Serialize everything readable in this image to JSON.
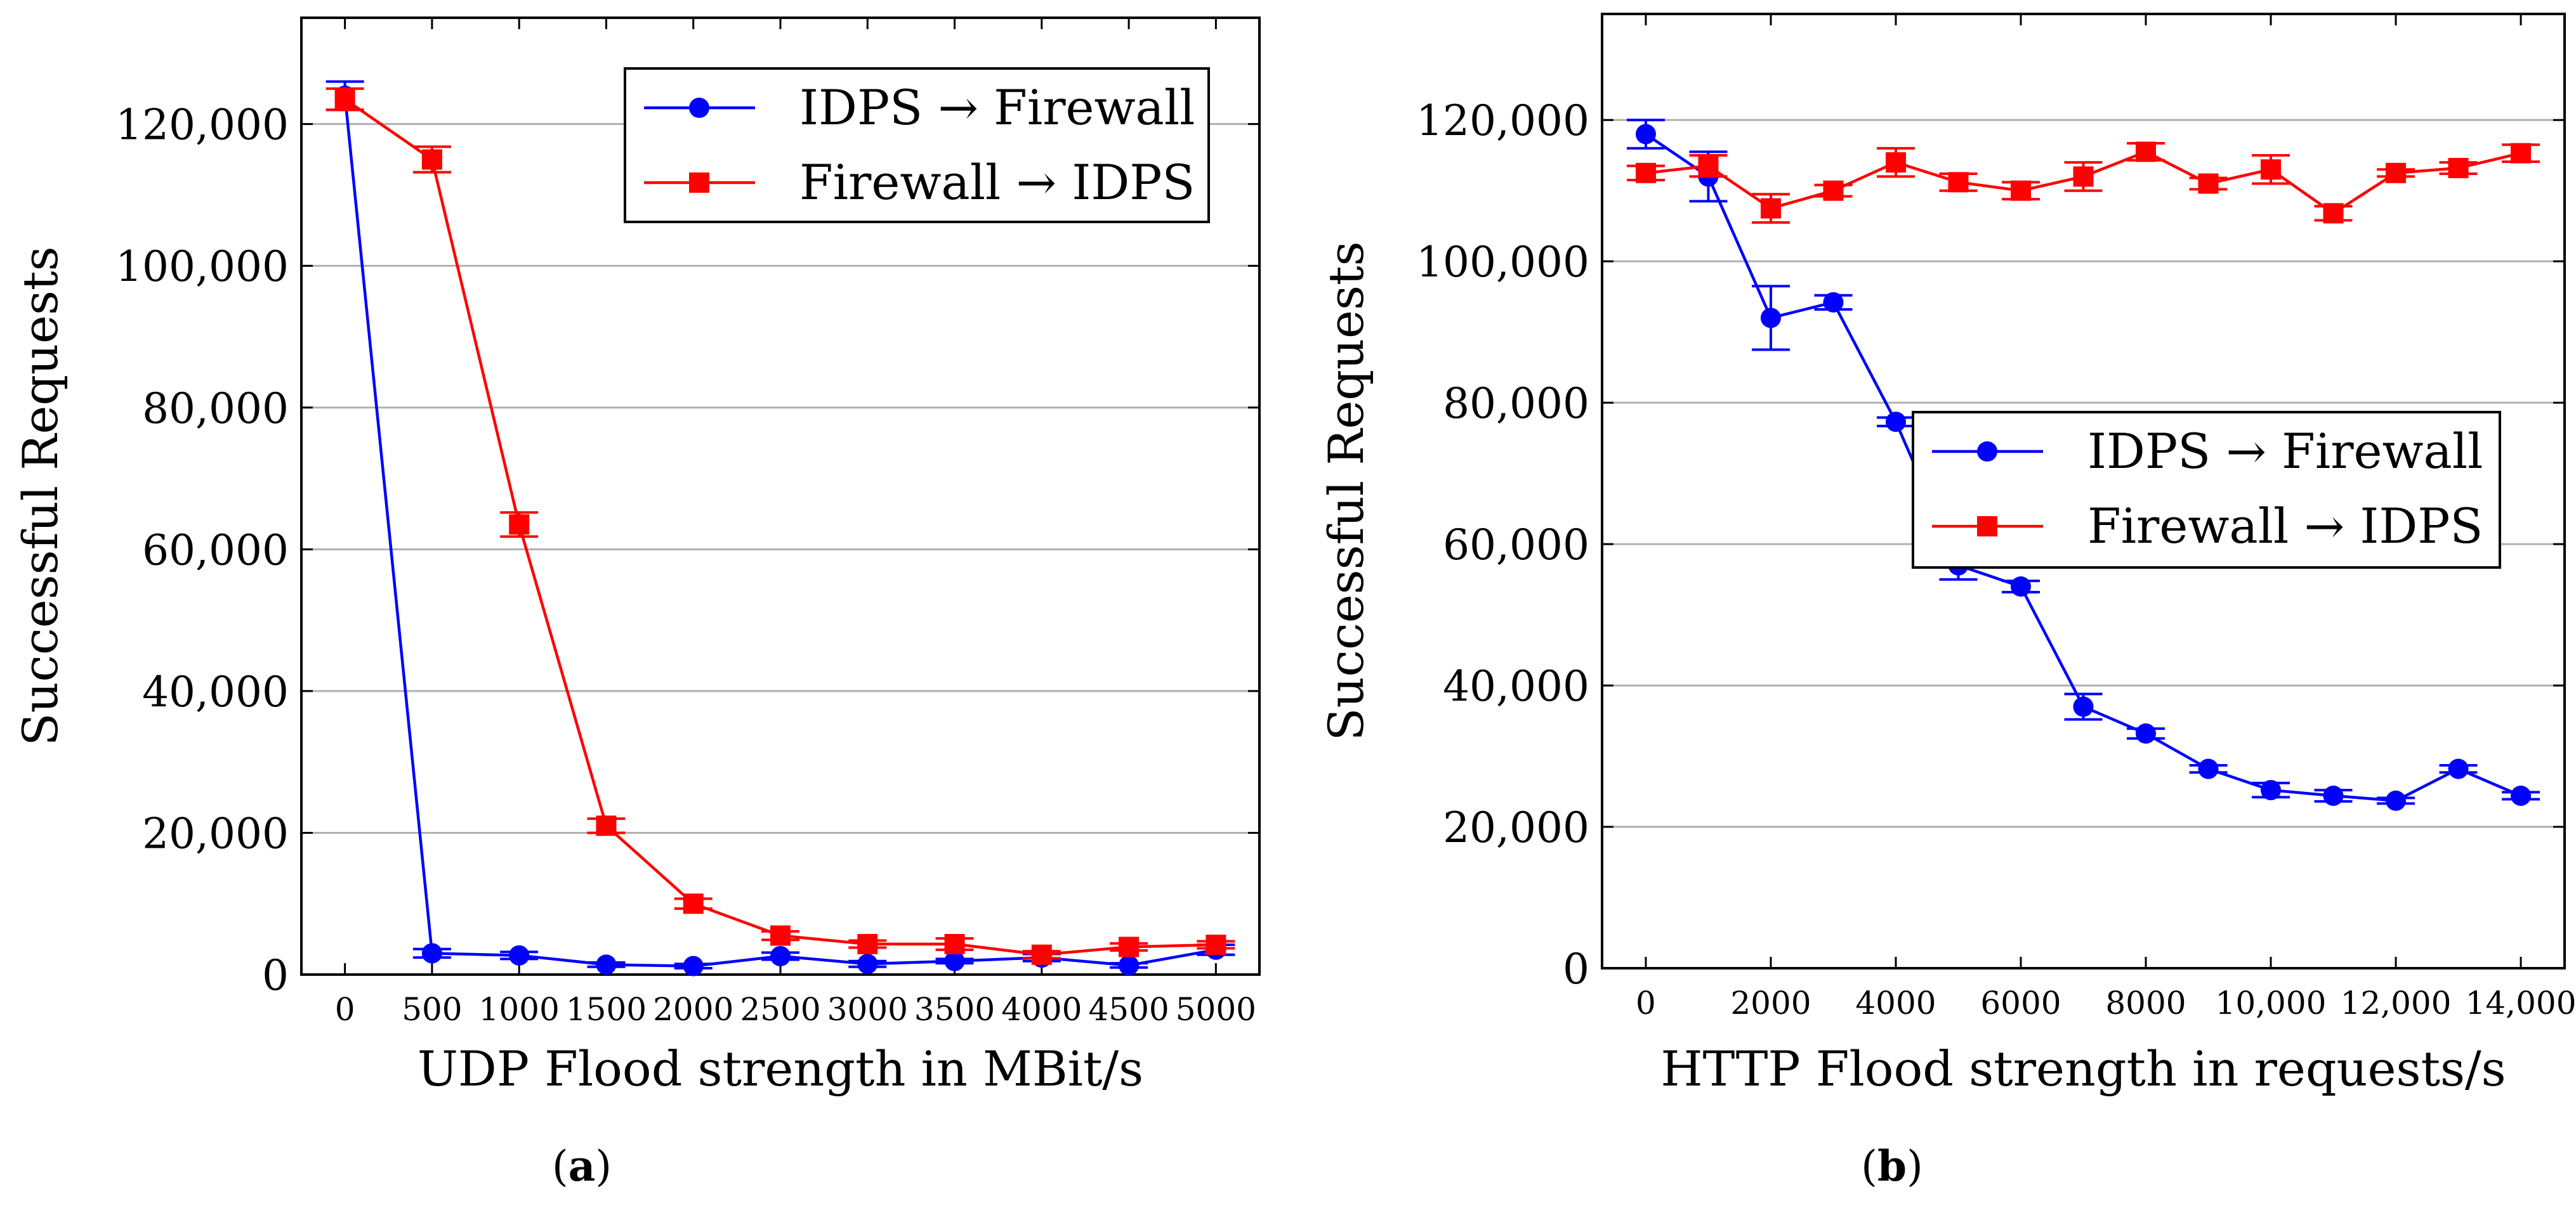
{
  "colors": {
    "series_blue": "#0000ff",
    "series_red": "#ff0000",
    "grid": "#b0b0b0",
    "axis": "#000000"
  },
  "chart_data": [
    {
      "id": "a",
      "type": "line",
      "caption": "(a)",
      "caption_letter": "a",
      "xlabel": "UDP Flood strength in MBit/s",
      "ylabel": "Successful Requests",
      "x_ticks": [
        0,
        500,
        1000,
        1500,
        2000,
        2500,
        3000,
        3500,
        4000,
        4500,
        5000
      ],
      "x_tick_labels": [
        "0",
        "500",
        "1000",
        "1500",
        "2000",
        "2500",
        "3000",
        "3500",
        "4000",
        "4500",
        "5000"
      ],
      "y_ticks": [
        0,
        20000,
        40000,
        60000,
        80000,
        100000,
        120000
      ],
      "y_tick_labels": [
        "0",
        "20,000",
        "40,000",
        "60,000",
        "80,000",
        "100,000",
        "120,000"
      ],
      "xlim": [
        -250,
        5250
      ],
      "ylim": [
        0,
        135000
      ],
      "grid": "horizontal",
      "legend_position": "top-right",
      "series": [
        {
          "name": "IDPS → Firewall",
          "color": "#0000ff",
          "marker": "circle",
          "x": [
            0,
            500,
            1000,
            1500,
            2000,
            2500,
            3000,
            3500,
            4000,
            4500,
            5000
          ],
          "y": [
            124000,
            3000,
            2700,
            1400,
            1200,
            2600,
            1500,
            1900,
            2400,
            1300,
            3500
          ],
          "err": [
            2000,
            600,
            500,
            300,
            300,
            500,
            400,
            300,
            500,
            300,
            700
          ]
        },
        {
          "name": "Firewall → IDPS",
          "color": "#ff0000",
          "marker": "square",
          "x": [
            0,
            500,
            1000,
            1500,
            2000,
            2500,
            3000,
            3500,
            4000,
            4500,
            5000
          ],
          "y": [
            123500,
            115000,
            63500,
            21000,
            10000,
            5500,
            4300,
            4300,
            2800,
            3900,
            4200
          ],
          "err": [
            1500,
            1800,
            1700,
            1000,
            700,
            600,
            500,
            800,
            500,
            500,
            500
          ]
        }
      ]
    },
    {
      "id": "b",
      "type": "line",
      "caption": "(b)",
      "caption_letter": "b",
      "xlabel": "HTTP Flood strength in requests/s",
      "ylabel": "Successful Requests",
      "x_ticks": [
        0,
        2000,
        4000,
        6000,
        8000,
        10000,
        12000,
        14000
      ],
      "x_tick_labels": [
        "0",
        "2000",
        "4000",
        "6000",
        "8000",
        "10,000",
        "12,000",
        "14,000"
      ],
      "y_ticks": [
        0,
        20000,
        40000,
        60000,
        80000,
        100000,
        120000
      ],
      "y_tick_labels": [
        "0",
        "20,000",
        "40,000",
        "60,000",
        "80,000",
        "100,000",
        "120,000"
      ],
      "xlim": [
        -700,
        14700
      ],
      "ylim": [
        0,
        135000
      ],
      "grid": "horizontal",
      "legend_position": "center-right",
      "series": [
        {
          "name": "IDPS → Firewall",
          "color": "#0000ff",
          "marker": "circle",
          "x": [
            0,
            1000,
            2000,
            3000,
            4000,
            5000,
            6000,
            7000,
            8000,
            9000,
            10000,
            11000,
            12000,
            13000,
            14000
          ],
          "y": [
            118000,
            112000,
            92000,
            94200,
            77300,
            57000,
            54000,
            37000,
            33200,
            28200,
            25200,
            24400,
            23700,
            28200,
            24400
          ],
          "err": [
            2000,
            3500,
            4500,
            1000,
            600,
            2000,
            800,
            1800,
            700,
            500,
            1000,
            800,
            400,
            500,
            500
          ]
        },
        {
          "name": "Firewall → IDPS",
          "color": "#ff0000",
          "marker": "square",
          "x": [
            0,
            1000,
            2000,
            3000,
            4000,
            5000,
            6000,
            7000,
            8000,
            9000,
            10000,
            11000,
            12000,
            13000,
            14000
          ],
          "y": [
            112500,
            113500,
            107500,
            110000,
            114000,
            111200,
            110000,
            112000,
            115500,
            111000,
            113000,
            106800,
            112500,
            113200,
            115300
          ],
          "err": [
            1000,
            1500,
            2000,
            800,
            2000,
            1200,
            1200,
            2000,
            1200,
            800,
            2000,
            1000,
            500,
            800,
            1200
          ]
        }
      ]
    }
  ]
}
